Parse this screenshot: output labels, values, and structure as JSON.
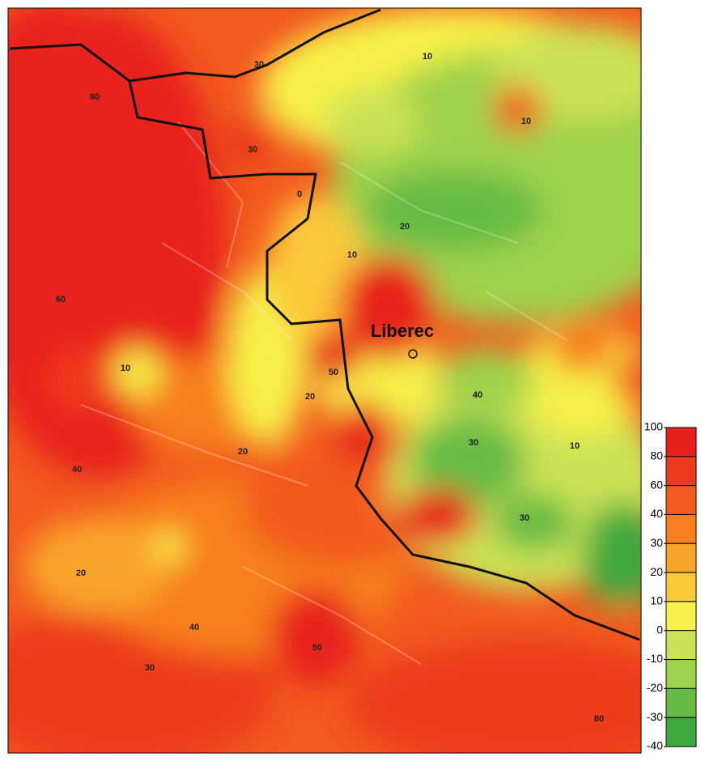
{
  "map": {
    "place_label": "Liberec",
    "contour_labels": [
      30,
      10,
      60,
      30,
      10,
      0,
      20,
      60,
      10,
      50,
      20,
      10,
      20,
      40,
      30,
      20,
      40,
      50,
      30,
      80,
      10,
      30,
      40
    ],
    "legend": {
      "ticks": [
        100,
        80,
        60,
        40,
        30,
        20,
        10,
        0,
        -10,
        -20,
        -30,
        -40
      ],
      "band_colors": [
        "#e8201c",
        "#ee3a1e",
        "#f25a1e",
        "#f77f1f",
        "#f9a42a",
        "#fbc83a",
        "#f6f04a",
        "#cbe256",
        "#9fd24c",
        "#66bb44",
        "#3fa83c"
      ]
    }
  }
}
